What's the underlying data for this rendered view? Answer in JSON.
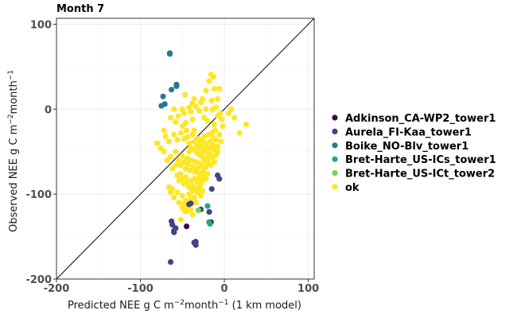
{
  "chart_data": {
    "type": "scatter",
    "title": "Month 7",
    "xlabel": {
      "prefix": "Predicted NEE g C m",
      "sup1": "−2",
      "mid": "month",
      "sup2": "−1",
      "suffix": " (1 km model)"
    },
    "ylabel": {
      "prefix": "Observed NEE g C m",
      "sup1": "−2",
      "mid": "month",
      "sup2": "−1",
      "suffix": ""
    },
    "xlim": [
      -200,
      107
    ],
    "ylim": [
      -200,
      107
    ],
    "xticks": [
      -200,
      -100,
      0,
      100
    ],
    "yticks": [
      -200,
      -100,
      0,
      100
    ],
    "xtick_labels": [
      "-200",
      "-100",
      "0",
      "100"
    ],
    "ytick_labels": [
      "-200",
      "-100",
      "0",
      "100"
    ],
    "grid": true,
    "reference_line": "1:1",
    "legend_position": "right",
    "series": [
      {
        "name": "Adkinson_CA-WP2_tower1",
        "color": "#440154",
        "points": [
          [
            -45,
            -138
          ],
          [
            -18,
            -133
          ],
          [
            -16,
            -133
          ]
        ]
      },
      {
        "name": "Aurela_FI-Kaa_tower1",
        "color": "#414487",
        "points": [
          [
            -64,
            -180
          ],
          [
            -63,
            -132
          ],
          [
            -62,
            -136
          ],
          [
            -60,
            -145
          ],
          [
            -58,
            -140
          ],
          [
            -60,
            -143
          ],
          [
            -35,
            -158
          ],
          [
            -34,
            -160
          ],
          [
            -34,
            -156
          ],
          [
            -36,
            -157
          ],
          [
            -28,
            -118
          ],
          [
            -42,
            -112
          ],
          [
            -40,
            -111
          ],
          [
            -18,
            -121
          ],
          [
            -15,
            -94
          ],
          [
            -8,
            -78
          ],
          [
            -6,
            -82
          ]
        ]
      },
      {
        "name": "Boike_NO-Blv_tower1",
        "color": "#2A788E",
        "points": [
          [
            -65,
            65
          ],
          [
            -65,
            66
          ],
          [
            -57,
            27
          ],
          [
            -57,
            29
          ],
          [
            -63,
            23
          ],
          [
            -73,
            15
          ],
          [
            -71,
            6
          ],
          [
            -75,
            4
          ]
        ]
      },
      {
        "name": "Bret-Harte_US-ICs_tower1",
        "color": "#22A884",
        "points": [
          [
            -17,
            -135
          ],
          [
            -18,
            -133
          ],
          [
            -20,
            -114
          ]
        ]
      },
      {
        "name": "Bret-Harte_US-ICt_tower2",
        "color": "#7AD151",
        "points": [
          [
            -31,
            -119
          ]
        ]
      },
      {
        "name": "ok",
        "color": "#FDE725",
        "points": [
          [
            -16,
            41
          ],
          [
            -13,
            38
          ],
          [
            -18,
            33
          ],
          [
            -12,
            24
          ],
          [
            -6,
            24
          ],
          [
            -8,
            12
          ],
          [
            -47,
            17
          ],
          [
            -36,
            12
          ],
          [
            -26,
            12
          ],
          [
            -22,
            22
          ],
          [
            -28,
            8
          ],
          [
            -38,
            7
          ],
          [
            -42,
            2
          ],
          [
            -15,
            10
          ],
          [
            -60,
            0
          ],
          [
            -50,
            0
          ],
          [
            -48,
            -5
          ],
          [
            -40,
            -3
          ],
          [
            -34,
            3
          ],
          [
            -30,
            -2
          ],
          [
            -22,
            0
          ],
          [
            -14,
            0
          ],
          [
            -10,
            2
          ],
          [
            -5,
            -5
          ],
          [
            -3,
            -12
          ],
          [
            5,
            -5
          ],
          [
            8,
            0
          ],
          [
            12,
            -10
          ],
          [
            18,
            -28
          ],
          [
            26,
            -18
          ],
          [
            -64,
            -10
          ],
          [
            -58,
            -15
          ],
          [
            -55,
            -8
          ],
          [
            -46,
            -16
          ],
          [
            -38,
            -12
          ],
          [
            -24,
            -10
          ],
          [
            -20,
            -14
          ],
          [
            -12,
            -18
          ],
          [
            -8,
            -8
          ],
          [
            -2,
            -20
          ],
          [
            -72,
            -25
          ],
          [
            -70,
            -32
          ],
          [
            -66,
            -38
          ],
          [
            -60,
            -30
          ],
          [
            -56,
            -36
          ],
          [
            -52,
            -28
          ],
          [
            -48,
            -35
          ],
          [
            -44,
            -33
          ],
          [
            -42,
            -40
          ],
          [
            -40,
            -45
          ],
          [
            -38,
            -30
          ],
          [
            -36,
            -48
          ],
          [
            -35,
            -38
          ],
          [
            -33,
            -42
          ],
          [
            -32,
            -52
          ],
          [
            -31,
            -35
          ],
          [
            -30,
            -46
          ],
          [
            -29,
            -40
          ],
          [
            -28,
            -55
          ],
          [
            -27,
            -44
          ],
          [
            -26,
            -36
          ],
          [
            -25,
            -50
          ],
          [
            -24,
            -32
          ],
          [
            -23,
            -48
          ],
          [
            -22,
            -40
          ],
          [
            -21,
            -56
          ],
          [
            -20,
            -45
          ],
          [
            -19,
            -30
          ],
          [
            -18,
            -52
          ],
          [
            -17,
            -38
          ],
          [
            -16,
            -46
          ],
          [
            -15,
            -28
          ],
          [
            -14,
            -42
          ],
          [
            -13,
            -34
          ],
          [
            -12,
            -48
          ],
          [
            -11,
            -25
          ],
          [
            -10,
            -36
          ],
          [
            -8,
            -44
          ],
          [
            -6,
            -30
          ],
          [
            -4,
            -38
          ],
          [
            -64,
            -56
          ],
          [
            -58,
            -50
          ],
          [
            -55,
            -60
          ],
          [
            -52,
            -66
          ],
          [
            -50,
            -55
          ],
          [
            -48,
            -62
          ],
          [
            -46,
            -70
          ],
          [
            -44,
            -58
          ],
          [
            -43,
            -65
          ],
          [
            -41,
            -72
          ],
          [
            -39,
            -60
          ],
          [
            -37,
            -68
          ],
          [
            -35,
            -74
          ],
          [
            -34,
            -62
          ],
          [
            -32,
            -70
          ],
          [
            -30,
            -64
          ],
          [
            -29,
            -76
          ],
          [
            -27,
            -66
          ],
          [
            -25,
            -72
          ],
          [
            -24,
            -60
          ],
          [
            -22,
            -68
          ],
          [
            -20,
            -62
          ],
          [
            -18,
            -58
          ],
          [
            -16,
            -66
          ],
          [
            -14,
            -56
          ],
          [
            -12,
            -62
          ],
          [
            -10,
            -54
          ],
          [
            -8,
            -50
          ],
          [
            -56,
            -78
          ],
          [
            -54,
            -84
          ],
          [
            -52,
            -76
          ],
          [
            -50,
            -82
          ],
          [
            -48,
            -88
          ],
          [
            -46,
            -80
          ],
          [
            -44,
            -86
          ],
          [
            -42,
            -92
          ],
          [
            -40,
            -84
          ],
          [
            -38,
            -90
          ],
          [
            -36,
            -82
          ],
          [
            -34,
            -94
          ],
          [
            -32,
            -86
          ],
          [
            -30,
            -80
          ],
          [
            -28,
            -88
          ],
          [
            -26,
            -84
          ],
          [
            -24,
            -78
          ],
          [
            -22,
            -82
          ],
          [
            -20,
            -76
          ],
          [
            -66,
            -92
          ],
          [
            -64,
            -98
          ],
          [
            -62,
            -94
          ],
          [
            -60,
            -104
          ],
          [
            -56,
            -98
          ],
          [
            -54,
            -110
          ],
          [
            -50,
            -102
          ],
          [
            -48,
            -112
          ],
          [
            -46,
            -108
          ],
          [
            -44,
            -116
          ],
          [
            -42,
            -100
          ],
          [
            -40,
            -106
          ],
          [
            -38,
            -96
          ],
          [
            -36,
            -104
          ],
          [
            -34,
            -110
          ],
          [
            -32,
            -98
          ],
          [
            -30,
            -92
          ],
          [
            -28,
            -102
          ],
          [
            -26,
            -96
          ],
          [
            -50,
            -116
          ],
          [
            -47,
            -120
          ],
          [
            -44,
            -120
          ],
          [
            -40,
            -118
          ],
          [
            -38,
            -124
          ],
          [
            -52,
            -130
          ],
          [
            -36,
            -25
          ],
          [
            -45,
            -25
          ],
          [
            -50,
            -20
          ],
          [
            -42,
            -50
          ],
          [
            -58,
            -66
          ],
          [
            -62,
            -70
          ],
          [
            -68,
            -60
          ],
          [
            -72,
            -50
          ],
          [
            -76,
            -46
          ],
          [
            -80,
            -40
          ]
        ]
      }
    ]
  }
}
